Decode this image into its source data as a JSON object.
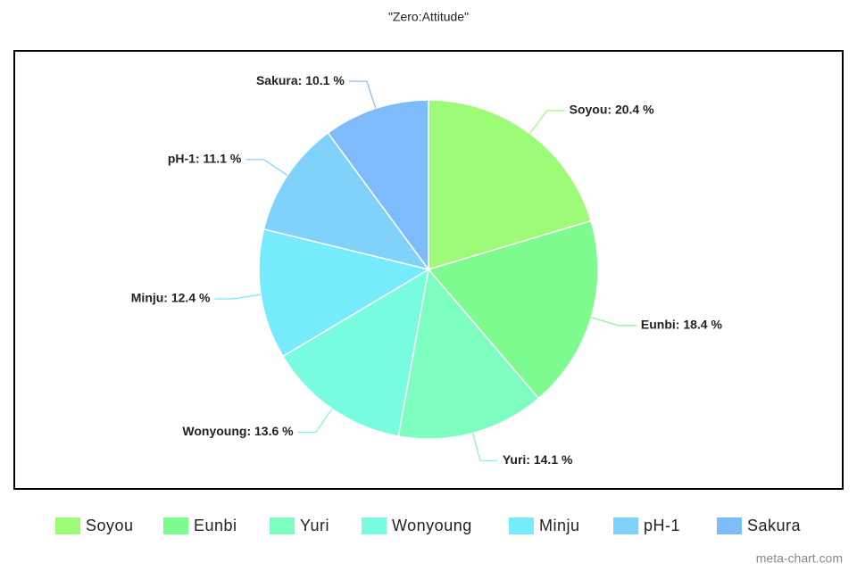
{
  "chart_data": {
    "type": "pie",
    "title": "\"Zero:Attitude\"",
    "categories": [
      "Soyou",
      "Eunbi",
      "Yuri",
      "Wonyoung",
      "Minju",
      "pH-1",
      "Sakura"
    ],
    "values": [
      20.4,
      18.4,
      14.1,
      13.6,
      12.4,
      11.1,
      10.1
    ],
    "value_labels": [
      "Soyou: 20.4 %",
      "Eunbi: 18.4 %",
      "Yuri: 14.1 %",
      "Wonyoung: 13.6 %",
      "Minju: 12.4 %",
      "pH-1: 11.1 %",
      "Sakura: 10.1 %"
    ],
    "colors": [
      "#9dfb78",
      "#7dfb8f",
      "#7dfdc0",
      "#78fcdf",
      "#76ebfc",
      "#80d2fb",
      "#7dbbfb"
    ],
    "legend": "bottom",
    "watermark": "meta-chart.com"
  }
}
